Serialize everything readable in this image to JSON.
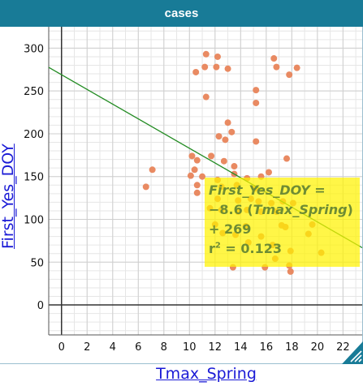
{
  "window": {
    "title": "cases"
  },
  "colors": {
    "titlebar": "#187b97",
    "point": "#e8845a",
    "regression_line": "#228b22",
    "equation_box": "#fff300",
    "equation_text": "#6e8c34",
    "axis_label": "#1a1ad6"
  },
  "icons": {
    "resize_handle": "resize-corner-icon"
  },
  "equation": {
    "lhs": "First_Yes_DOY",
    "eq_sign": " =",
    "coef": "−8.6 (",
    "var": "Tmax_Spring",
    "close": ")",
    "intercept": "+ 269",
    "r2_prefix": "r",
    "r2_sup": "2",
    "r2_value": " = 0.123"
  },
  "chart_data": {
    "type": "scatter",
    "xlabel": "Tmax_Spring",
    "ylabel": "First_Yes_DOY",
    "xlim": [
      -1,
      23.5
    ],
    "ylim": [
      -35,
      325
    ],
    "xticks": [
      0,
      2,
      4,
      6,
      8,
      10,
      12,
      14,
      16,
      18,
      20,
      22
    ],
    "yticks": [
      0,
      50,
      100,
      150,
      200,
      250,
      300
    ],
    "grid": true,
    "regression": {
      "slope": -8.6,
      "intercept": 269,
      "r2": 0.123
    },
    "points": [
      {
        "x": 11.3,
        "y": 293
      },
      {
        "x": 12.2,
        "y": 290
      },
      {
        "x": 16.6,
        "y": 288
      },
      {
        "x": 11.2,
        "y": 278
      },
      {
        "x": 12.1,
        "y": 278
      },
      {
        "x": 13.0,
        "y": 276
      },
      {
        "x": 10.5,
        "y": 272
      },
      {
        "x": 16.8,
        "y": 278
      },
      {
        "x": 18.4,
        "y": 277
      },
      {
        "x": 17.8,
        "y": 269
      },
      {
        "x": 15.2,
        "y": 251
      },
      {
        "x": 11.3,
        "y": 243
      },
      {
        "x": 15.2,
        "y": 236
      },
      {
        "x": 13.0,
        "y": 213
      },
      {
        "x": 13.3,
        "y": 202
      },
      {
        "x": 12.3,
        "y": 197
      },
      {
        "x": 12.8,
        "y": 193
      },
      {
        "x": 15.2,
        "y": 191
      },
      {
        "x": 11.7,
        "y": 174
      },
      {
        "x": 10.2,
        "y": 174
      },
      {
        "x": 12.7,
        "y": 168
      },
      {
        "x": 10.6,
        "y": 169
      },
      {
        "x": 10.4,
        "y": 158
      },
      {
        "x": 7.1,
        "y": 158
      },
      {
        "x": 13.5,
        "y": 162
      },
      {
        "x": 10.1,
        "y": 151
      },
      {
        "x": 11.0,
        "y": 150
      },
      {
        "x": 12.2,
        "y": 146
      },
      {
        "x": 13.5,
        "y": 153
      },
      {
        "x": 14.5,
        "y": 148
      },
      {
        "x": 15.6,
        "y": 150
      },
      {
        "x": 16.2,
        "y": 155
      },
      {
        "x": 17.6,
        "y": 171
      },
      {
        "x": 10.6,
        "y": 140
      },
      {
        "x": 12.5,
        "y": 138
      },
      {
        "x": 13.7,
        "y": 140
      },
      {
        "x": 15.1,
        "y": 136
      },
      {
        "x": 6.6,
        "y": 138
      },
      {
        "x": 10.6,
        "y": 131
      },
      {
        "x": 12.2,
        "y": 124
      },
      {
        "x": 13.8,
        "y": 122
      },
      {
        "x": 14.8,
        "y": 124
      },
      {
        "x": 15.4,
        "y": 121
      },
      {
        "x": 16.4,
        "y": 119
      },
      {
        "x": 17.3,
        "y": 121
      },
      {
        "x": 18.1,
        "y": 119
      },
      {
        "x": 11.6,
        "y": 113
      },
      {
        "x": 12.5,
        "y": 111
      },
      {
        "x": 13.8,
        "y": 109
      },
      {
        "x": 14.5,
        "y": 111
      },
      {
        "x": 15.6,
        "y": 109
      },
      {
        "x": 16.8,
        "y": 109
      },
      {
        "x": 12.0,
        "y": 94
      },
      {
        "x": 14.4,
        "y": 92
      },
      {
        "x": 17.2,
        "y": 93
      },
      {
        "x": 17.5,
        "y": 91
      },
      {
        "x": 19.6,
        "y": 94
      },
      {
        "x": 12.6,
        "y": 84
      },
      {
        "x": 13.6,
        "y": 82
      },
      {
        "x": 15.6,
        "y": 80
      },
      {
        "x": 19.3,
        "y": 83
      },
      {
        "x": 14.6,
        "y": 73
      },
      {
        "x": 16.5,
        "y": 70
      },
      {
        "x": 17.9,
        "y": 63
      },
      {
        "x": 20.3,
        "y": 61
      },
      {
        "x": 16.7,
        "y": 54
      },
      {
        "x": 17.8,
        "y": 46
      },
      {
        "x": 13.4,
        "y": 44
      },
      {
        "x": 15.9,
        "y": 44
      },
      {
        "x": 17.9,
        "y": 39
      }
    ]
  }
}
